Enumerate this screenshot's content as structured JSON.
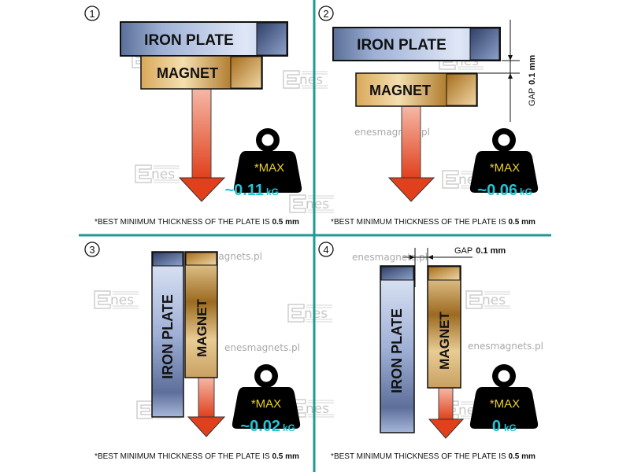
{
  "colors": {
    "divider": "#1f9a95",
    "max_text": "#e8d12a",
    "value_text": "#23c6d6",
    "arrow": "#e0401c"
  },
  "watermarks": {
    "site": "enesmagnets.pl",
    "logo": "nes"
  },
  "panels": [
    {
      "number": "1",
      "iron_label": "IRON PLATE",
      "magnet_label": "MAGNET",
      "max_label": "*MAX",
      "value": "~0.11",
      "unit": "kG",
      "footnote": "*BEST MINIMUM THICKNESS OF THE PLATE IS ",
      "footnote_bold": "0.5 mm"
    },
    {
      "number": "2",
      "iron_label": "IRON PLATE",
      "magnet_label": "MAGNET",
      "max_label": "*MAX",
      "value": "~0.06",
      "unit": "kG",
      "gap_label": "GAP",
      "gap_value": "0.1 mm",
      "footnote": "*BEST MINIMUM THICKNESS OF THE PLATE IS ",
      "footnote_bold": "0.5 mm"
    },
    {
      "number": "3",
      "iron_label": "IRON  PLATE",
      "magnet_label": "MAGNET",
      "max_label": "*MAX",
      "value": "~0.02",
      "unit": "kG",
      "footnote": "*BEST MINIMUM THICKNESS OF THE PLATE IS ",
      "footnote_bold": "0.5 mm"
    },
    {
      "number": "4",
      "iron_label": "IRON PLATE",
      "magnet_label": "MAGNET",
      "max_label": "*MAX",
      "value": "0",
      "unit": "kG",
      "gap_label": "GAP",
      "gap_value": "0.1 mm",
      "footnote": "*BEST MINIMUM THICKNESS OF THE PLATE IS ",
      "footnote_bold": "0.5 mm"
    }
  ]
}
